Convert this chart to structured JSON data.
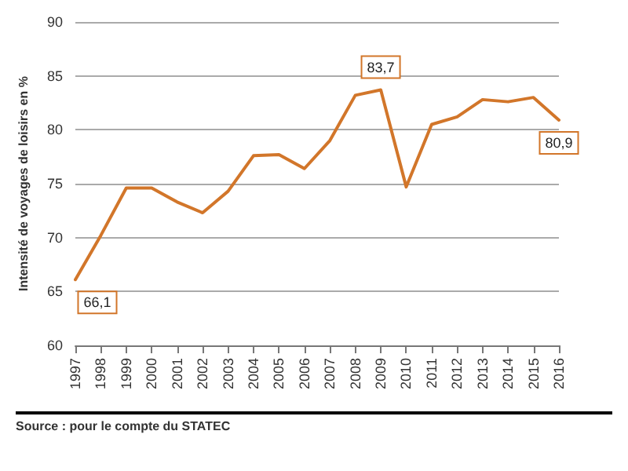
{
  "chart_data": {
    "type": "line",
    "ylabel": "Intensité de voyages de loisirs en %",
    "categories": [
      "1997",
      "1998",
      "1999",
      "2000",
      "2001",
      "2002",
      "2003",
      "2004",
      "2005",
      "2006",
      "2007",
      "2008",
      "2009",
      "2010",
      "2011",
      "2012",
      "2013",
      "2014",
      "2015",
      "2016"
    ],
    "series": [
      {
        "color": "#d2762a",
        "values": [
          66.1,
          70.2,
          74.6,
          74.6,
          73.3,
          72.3,
          74.3,
          77.6,
          77.7,
          76.4,
          79.0,
          83.2,
          83.7,
          74.7,
          80.5,
          81.2,
          82.8,
          82.6,
          83.0,
          80.9
        ],
        "value_labels": [
          "66,1",
          null,
          null,
          null,
          null,
          null,
          null,
          null,
          null,
          null,
          null,
          null,
          "83,7",
          null,
          null,
          null,
          null,
          null,
          null,
          "80,9"
        ]
      }
    ],
    "ylim": [
      60,
      90
    ],
    "yticks": [
      60,
      65,
      70,
      75,
      80,
      85,
      90
    ],
    "grid": "y",
    "marker": "none",
    "line_style": "solid",
    "annotations": [
      "Source : pour le compte du STATEC"
    ]
  }
}
